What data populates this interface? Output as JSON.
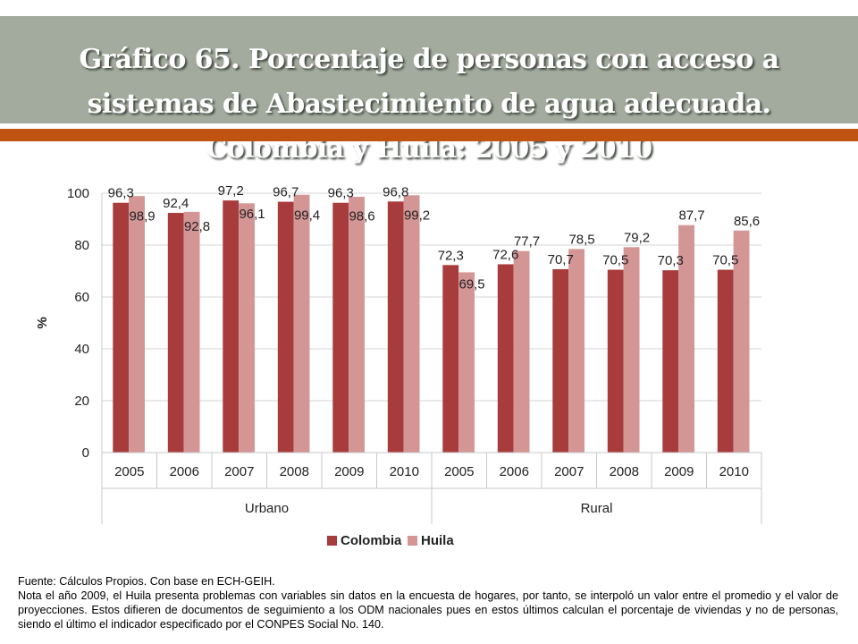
{
  "header": {
    "title": "Gráfico 65. Porcentaje de personas con acceso a sistemas de Abastecimiento de agua adecuada. Colombia y Huila: 2005 y 2010"
  },
  "footer": {
    "source": "Fuente: Cálculos Propios. Con base en ECH-GEIH.",
    "note": "Nota el año 2009, el Huila presenta problemas con variables sin datos en la encuesta de hogares, por tanto, se interpoló un valor entre el promedio y el valor de proyecciones. Estos difieren de documentos de seguimiento a los ODM nacionales pues en estos últimos calculan el porcentaje de viviendas y no de personas, siendo el último el indicador especificado por el CONPES Social No. 140."
  },
  "chart_data": {
    "type": "bar",
    "groups": [
      {
        "name": "Urbano",
        "categories": [
          "2005",
          "2006",
          "2007",
          "2008",
          "2009",
          "2010"
        ]
      },
      {
        "name": "Rural",
        "categories": [
          "2005",
          "2006",
          "2007",
          "2008",
          "2009",
          "2010"
        ]
      }
    ],
    "series": [
      {
        "name": "Colombia",
        "color": "#a83c3c",
        "values": [
          96.3,
          92.4,
          97.2,
          96.7,
          96.3,
          96.8,
          72.3,
          72.6,
          70.7,
          70.5,
          70.3,
          70.5
        ],
        "labels": [
          "96,3",
          "92,4",
          "97,2",
          "96,7",
          "96,3",
          "96,8",
          "72,3",
          "72,6",
          "70,7",
          "70,5",
          "70,3",
          "70,5"
        ]
      },
      {
        "name": "Huila",
        "color": "#d49595",
        "values": [
          98.9,
          92.8,
          96.1,
          99.4,
          98.6,
          99.2,
          69.5,
          77.7,
          78.5,
          79.2,
          87.7,
          85.6
        ],
        "labels": [
          "98,9",
          "92,8",
          "96,1",
          "99,4",
          "98,6",
          "99,2",
          "69,5",
          "77,7",
          "78,5",
          "79,2",
          "87,7",
          "85,6"
        ]
      }
    ],
    "ylabel": "%",
    "ylim": [
      0,
      100
    ],
    "yticks": [
      "0",
      "20",
      "40",
      "60",
      "80",
      "100"
    ],
    "grid": true,
    "legend": "bottom"
  }
}
